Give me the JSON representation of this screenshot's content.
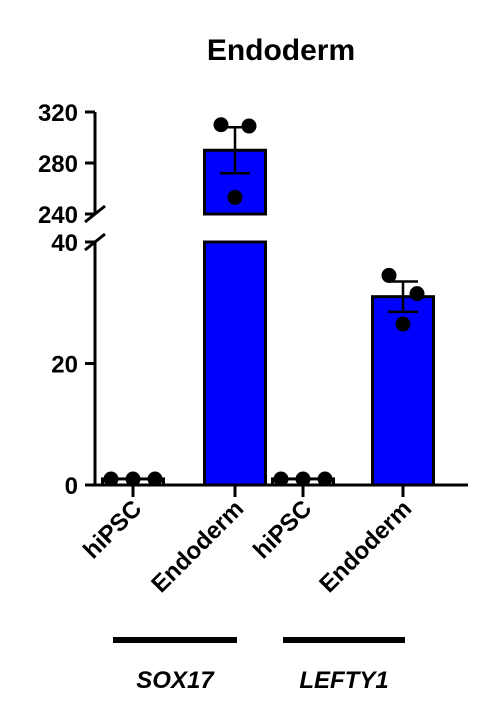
{
  "chart_data": {
    "type": "bar",
    "title": "Endoderm",
    "xlabel": "",
    "ylabel": "",
    "axis_break": {
      "lower_range": [
        0,
        40
      ],
      "upper_range": [
        240,
        320
      ]
    },
    "y_ticks_lower": [
      0,
      20,
      40
    ],
    "y_ticks_upper": [
      240,
      280,
      320
    ],
    "groups": [
      {
        "name": "SOX17",
        "bars": [
          {
            "category": "hiPSC",
            "mean": 1,
            "sem": 0.1,
            "points": [
              0.8,
              1.1,
              1.1
            ]
          },
          {
            "category": "Endoderm",
            "mean": 290,
            "sem": 18,
            "points": [
              310,
              309,
              253
            ]
          }
        ]
      },
      {
        "name": "LEFTY1",
        "bars": [
          {
            "category": "hiPSC",
            "mean": 1,
            "sem": 0.1,
            "points": [
              0.9,
              1.1,
              0.9
            ]
          },
          {
            "category": "Endoderm",
            "mean": 31,
            "sem": 2.5,
            "points": [
              34.5,
              31.5,
              26.5
            ]
          }
        ]
      }
    ],
    "colors": {
      "hiPSC": "#ffffff",
      "Endoderm": "#0000ff",
      "outline": "#000000"
    },
    "grid": false,
    "legend": "none"
  }
}
